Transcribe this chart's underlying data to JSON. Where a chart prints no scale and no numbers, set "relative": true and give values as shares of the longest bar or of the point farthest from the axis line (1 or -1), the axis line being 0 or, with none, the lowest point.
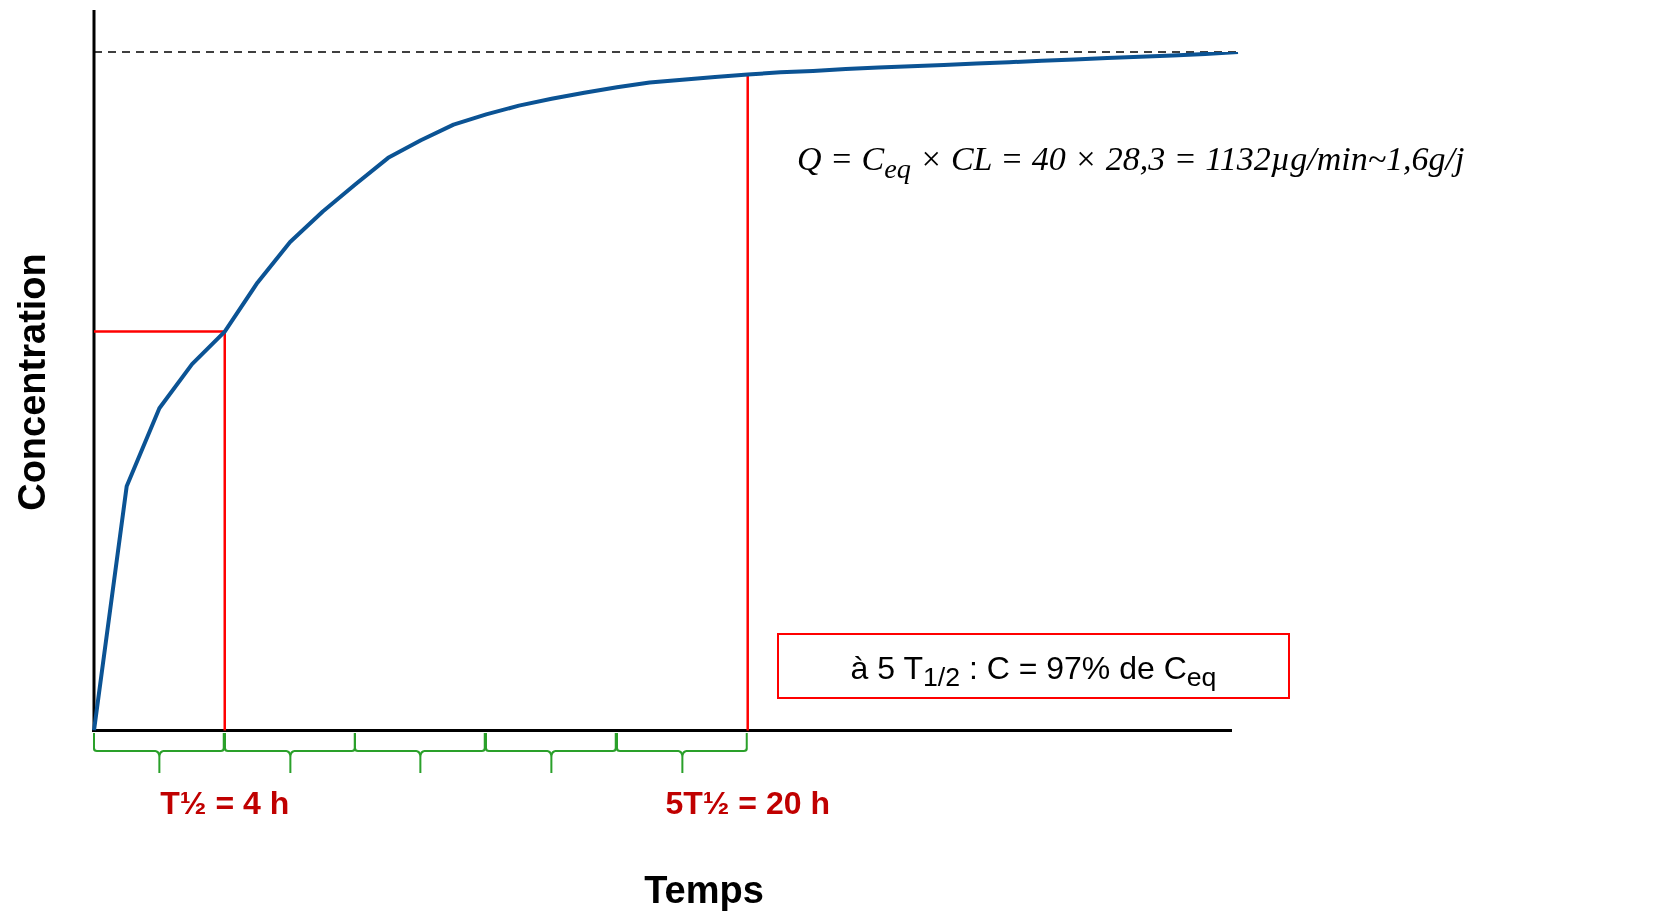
{
  "chart_data": {
    "type": "line",
    "relative": true,
    "xlabel": "Temps",
    "ylabel": "Concentration",
    "categories": [
      null,
      null,
      null,
      null,
      "T½ = 4 h",
      null,
      null,
      null,
      null,
      null,
      null,
      null,
      null,
      null,
      null,
      null,
      null,
      null,
      null,
      null,
      "5T½ = 20 h",
      null,
      null,
      null,
      null,
      null,
      null,
      null,
      null,
      null,
      null,
      null,
      null,
      null,
      null,
      null
    ],
    "tick_labels": "x",
    "marker": "none",
    "series": [
      {
        "color": "#0b5394",
        "values": [
          0,
          0.36,
          0.475,
          0.54,
          0.588,
          0.66,
          0.72,
          0.765,
          0.805,
          0.844,
          0.87,
          0.893,
          0.908,
          0.921,
          0.931,
          0.94,
          0.948,
          0.955,
          0.959,
          0.963,
          0.967,
          0.97,
          0.972,
          0.975,
          0.977,
          0.979,
          0.981,
          0.983,
          0.985,
          0.987,
          0.989,
          0.991,
          0.993,
          0.995,
          0.997,
          1
        ]
      }
    ],
    "ref_lines": [
      {
        "axis": "y",
        "value": 1,
        "color": "#000000",
        "line_style": "dashed"
      },
      {
        "axis": "x",
        "value": "T½ = 4 h",
        "color": "#ff0000",
        "line_style": "solid"
      },
      {
        "axis": "y",
        "value": 0.588,
        "color": "#ff0000",
        "line_style": "solid"
      },
      {
        "axis": "x",
        "value": "5T½ = 20 h",
        "color": "#ff0000",
        "line_style": "solid"
      }
    ],
    "annotations": [
      "Q = C$_{eq}$ × CL = 40 × 28,3 = 1132µg/min~1,6g/j",
      "à 5 T$_{1/2}$ : C = 97% de C$_{eq}$"
    ]
  }
}
